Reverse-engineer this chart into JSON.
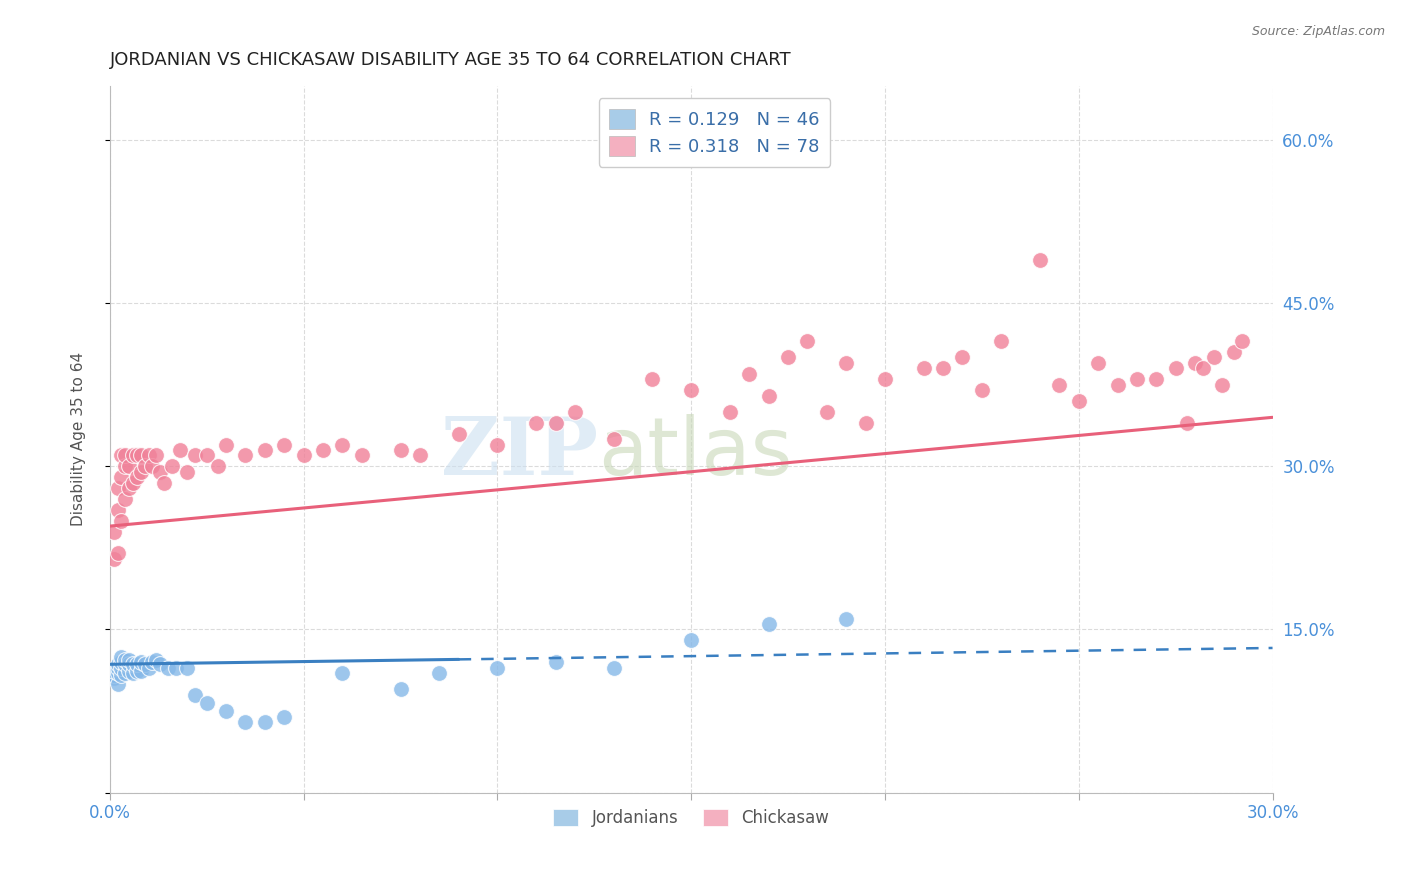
{
  "title": "JORDANIAN VS CHICKASAW DISABILITY AGE 35 TO 64 CORRELATION CHART",
  "source": "Source: ZipAtlas.com",
  "ylabel": "Disability Age 35 to 64",
  "xlim": [
    0.0,
    0.3
  ],
  "ylim": [
    0.0,
    0.65
  ],
  "xticks": [
    0.0,
    0.05,
    0.1,
    0.15,
    0.2,
    0.25,
    0.3
  ],
  "yticks": [
    0.0,
    0.15,
    0.3,
    0.45,
    0.6
  ],
  "right_ytick_labels": [
    "",
    "15.0%",
    "30.0%",
    "45.0%",
    "60.0%"
  ],
  "jordanians_color": "#85b8e8",
  "chickasaw_color": "#f08098",
  "trend_jordanians_color": "#3a7fc1",
  "trend_chickasaw_color": "#e8607a",
  "background_color": "#ffffff",
  "grid_color": "#d8d8d8",
  "jord_legend_color": "#a8cce8",
  "chick_legend_color": "#f4b0c0",
  "jordanians_x": [
    0.001,
    0.001,
    0.001,
    0.002,
    0.002,
    0.002,
    0.002,
    0.003,
    0.003,
    0.003,
    0.003,
    0.004,
    0.004,
    0.004,
    0.005,
    0.005,
    0.005,
    0.006,
    0.006,
    0.007,
    0.007,
    0.008,
    0.008,
    0.009,
    0.01,
    0.011,
    0.012,
    0.013,
    0.015,
    0.017,
    0.02,
    0.022,
    0.025,
    0.03,
    0.035,
    0.04,
    0.045,
    0.06,
    0.075,
    0.085,
    0.1,
    0.115,
    0.13,
    0.15,
    0.17,
    0.19
  ],
  "jordanians_y": [
    0.105,
    0.108,
    0.112,
    0.1,
    0.11,
    0.115,
    0.118,
    0.108,
    0.115,
    0.12,
    0.125,
    0.11,
    0.118,
    0.122,
    0.112,
    0.118,
    0.122,
    0.11,
    0.118,
    0.112,
    0.118,
    0.112,
    0.12,
    0.118,
    0.115,
    0.12,
    0.122,
    0.118,
    0.115,
    0.115,
    0.115,
    0.09,
    0.082,
    0.075,
    0.065,
    0.065,
    0.07,
    0.11,
    0.095,
    0.11,
    0.115,
    0.12,
    0.115,
    0.14,
    0.155,
    0.16
  ],
  "chickasaw_x": [
    0.001,
    0.001,
    0.002,
    0.002,
    0.002,
    0.003,
    0.003,
    0.003,
    0.004,
    0.004,
    0.004,
    0.005,
    0.005,
    0.006,
    0.006,
    0.007,
    0.007,
    0.008,
    0.008,
    0.009,
    0.01,
    0.011,
    0.012,
    0.013,
    0.014,
    0.016,
    0.018,
    0.02,
    0.022,
    0.025,
    0.028,
    0.03,
    0.035,
    0.04,
    0.045,
    0.05,
    0.055,
    0.06,
    0.065,
    0.075,
    0.08,
    0.09,
    0.1,
    0.11,
    0.115,
    0.12,
    0.13,
    0.14,
    0.15,
    0.16,
    0.165,
    0.17,
    0.175,
    0.18,
    0.185,
    0.19,
    0.195,
    0.2,
    0.21,
    0.215,
    0.22,
    0.225,
    0.23,
    0.24,
    0.245,
    0.25,
    0.255,
    0.26,
    0.265,
    0.27,
    0.275,
    0.278,
    0.28,
    0.282,
    0.285,
    0.287,
    0.29,
    0.292
  ],
  "chickasaw_y": [
    0.215,
    0.24,
    0.22,
    0.26,
    0.28,
    0.25,
    0.29,
    0.31,
    0.27,
    0.3,
    0.31,
    0.28,
    0.3,
    0.285,
    0.31,
    0.29,
    0.31,
    0.295,
    0.31,
    0.3,
    0.31,
    0.3,
    0.31,
    0.295,
    0.285,
    0.3,
    0.315,
    0.295,
    0.31,
    0.31,
    0.3,
    0.32,
    0.31,
    0.315,
    0.32,
    0.31,
    0.315,
    0.32,
    0.31,
    0.315,
    0.31,
    0.33,
    0.32,
    0.34,
    0.34,
    0.35,
    0.325,
    0.38,
    0.37,
    0.35,
    0.385,
    0.365,
    0.4,
    0.415,
    0.35,
    0.395,
    0.34,
    0.38,
    0.39,
    0.39,
    0.4,
    0.37,
    0.415,
    0.49,
    0.375,
    0.36,
    0.395,
    0.375,
    0.38,
    0.38,
    0.39,
    0.34,
    0.395,
    0.39,
    0.4,
    0.375,
    0.405,
    0.415
  ],
  "jord_trend_x0": 0.0,
  "jord_trend_y0": 0.118,
  "jord_trend_x1": 0.3,
  "jord_trend_y1": 0.133,
  "chick_trend_x0": 0.0,
  "chick_trend_y0": 0.245,
  "chick_trend_x1": 0.3,
  "chick_trend_y1": 0.345
}
